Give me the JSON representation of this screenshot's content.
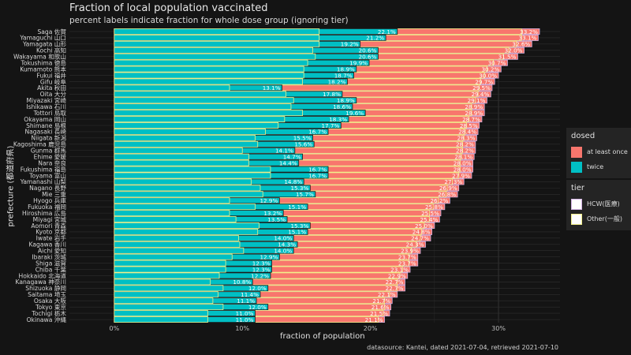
{
  "chart_data": {
    "type": "bar",
    "orientation": "horizontal",
    "title": "Fraction of local population vaccinated",
    "subtitle": "percent labels indicate fraction for whole dose group (ignoring tier)",
    "xlabel": "fraction of population",
    "ylabel": "prefecture (都道府県)",
    "caption": "datasource: Kantei, dated 2021-07-04, retrieved 2021-07-10",
    "xlim": [
      -0.035,
      0.348
    ],
    "xticks": [
      "0%",
      "10%",
      "20%",
      "30%"
    ],
    "xtick_values": [
      0,
      0.1,
      0.2,
      0.3
    ],
    "grid": true,
    "colors": {
      "at_least_once": "#F8766D",
      "twice": "#00BFC4",
      "hcw_outline": "#D4B4E4",
      "other_outline": "#F2F08A"
    },
    "legend_position": "right",
    "legend": {
      "dosed": {
        "title": "dosed",
        "items": [
          "at least once",
          "twice"
        ]
      },
      "tier": {
        "title": "tier",
        "items": [
          "HCW(医療)",
          "Other(一般)"
        ]
      }
    },
    "categories": [
      "Saga 佐賀",
      "Yamaguchi 山口",
      "Yamagata 山形",
      "Kochi 高知",
      "Wakayama 和歌山",
      "Tokushima 徳島",
      "Kumamoto 熊本",
      "Fukui 福井",
      "Gifu 岐阜",
      "Akita 秋田",
      "Oita 大分",
      "Miyazaki 宮崎",
      "Ishikawa 石川",
      "Tottori 鳥取",
      "Okayama 岡山",
      "Shimane 島根",
      "Nagasaki 長崎",
      "Niigata 新潟",
      "Kagoshima 鹿児島",
      "Gunma 群馬",
      "Ehime 愛媛",
      "Nara 奈良",
      "Fukushima 福島",
      "Toyama 富山",
      "Yamanashi 山梨",
      "Nagano 長野",
      "Mie 三重",
      "Hyogo 兵庫",
      "Fukuoka 福岡",
      "Hiroshima 広島",
      "Miyagi 宮城",
      "Aomori 青森",
      "Kyoto 京都",
      "Iwate 岩手",
      "Kagawa 香川",
      "Aichi 愛知",
      "Ibaraki 茨城",
      "Shiga 滋賀",
      "Chiba 千葉",
      "Hokkaido 北海道",
      "Kanagawa 神奈川",
      "Shizuoka 静岡",
      "Saitama 埼玉",
      "Osaka 大阪",
      "Tokyo 東京",
      "Tochigi 栃木",
      "Okinawa 沖縄"
    ],
    "series": [
      {
        "name": "at least once",
        "labels": [
          "33.2%",
          "33.1%",
          "32.6%",
          "32.0%",
          "31.5%",
          "30.7%",
          "30.2%",
          "30.0%",
          "29.7%",
          "29.5%",
          "29.4%",
          "29.1%",
          "28.9%",
          "28.9%",
          "28.7%",
          "28.5%",
          "28.4%",
          "28.3%",
          "28.2%",
          "28.2%",
          "28.1%",
          "28.0%",
          "28.0%",
          "27.9%",
          "27.3%",
          "26.9%",
          "26.8%",
          "26.2%",
          "25.8%",
          "25.5%",
          "25.4%",
          "25.0%",
          "24.8%",
          "24.7%",
          "24.3%",
          "23.9%",
          "23.7%",
          "23.7%",
          "23.1%",
          "22.9%",
          "22.7%",
          "22.7%",
          "22.1%",
          "21.7%",
          "21.6%",
          "21.5%",
          "21.1%"
        ],
        "values": [
          0.332,
          0.331,
          0.326,
          0.32,
          0.315,
          0.307,
          0.302,
          0.3,
          0.297,
          0.295,
          0.294,
          0.291,
          0.289,
          0.289,
          0.287,
          0.285,
          0.284,
          0.283,
          0.282,
          0.282,
          0.281,
          0.28,
          0.28,
          0.279,
          0.273,
          0.269,
          0.268,
          0.262,
          0.258,
          0.255,
          0.254,
          0.25,
          0.248,
          0.247,
          0.243,
          0.239,
          0.237,
          0.237,
          0.231,
          0.229,
          0.227,
          0.227,
          0.221,
          0.217,
          0.216,
          0.215,
          0.211
        ]
      },
      {
        "name": "twice",
        "labels": [
          "22.1%",
          "21.2%",
          "19.2%",
          "20.6%",
          "20.6%",
          "19.9%",
          "18.9%",
          "18.7%",
          "18.2%",
          "13.1%",
          "17.8%",
          "18.9%",
          "18.6%",
          "19.6%",
          "18.3%",
          "17.7%",
          "16.7%",
          "15.5%",
          "15.6%",
          "14.1%",
          "14.7%",
          "14.4%",
          "16.7%",
          "16.7%",
          "14.8%",
          "15.3%",
          "15.7%",
          "12.9%",
          "15.1%",
          "13.2%",
          "13.5%",
          "15.3%",
          "15.1%",
          "14.0%",
          "14.3%",
          "14.0%",
          "12.9%",
          "12.3%",
          "12.3%",
          "12.2%",
          "10.8%",
          "12.0%",
          "11.4%",
          "11.1%",
          "12.0%",
          "11.0%",
          "11.0%"
        ],
        "values": [
          0.221,
          0.212,
          0.192,
          0.206,
          0.206,
          0.199,
          0.189,
          0.187,
          0.182,
          0.131,
          0.178,
          0.189,
          0.186,
          0.196,
          0.183,
          0.177,
          0.167,
          0.155,
          0.156,
          0.141,
          0.147,
          0.144,
          0.167,
          0.167,
          0.148,
          0.153,
          0.157,
          0.129,
          0.151,
          0.132,
          0.135,
          0.153,
          0.151,
          0.14,
          0.143,
          0.14,
          0.129,
          0.123,
          0.123,
          0.122,
          0.108,
          0.12,
          0.114,
          0.111,
          0.12,
          0.11,
          0.11
        ]
      }
    ],
    "other_tier_at_least_once": [
      0.318,
      0.318,
      0.314,
      0.308,
      0.304,
      0.296,
      0.291,
      0.289,
      0.286,
      0.285,
      0.284,
      0.282,
      0.279,
      0.279,
      0.277,
      0.275,
      0.274,
      0.273,
      0.272,
      0.272,
      0.271,
      0.27,
      0.27,
      0.269,
      0.264,
      0.26,
      0.259,
      0.253,
      0.249,
      0.246,
      0.246,
      0.242,
      0.24,
      0.239,
      0.236,
      0.232,
      0.23,
      0.23,
      0.225,
      0.223,
      0.221,
      0.221,
      0.215,
      0.211,
      0.211,
      0.21,
      0.206
    ],
    "other_tier_twice": [
      0.16,
      0.16,
      0.16,
      0.155,
      0.157,
      0.151,
      0.148,
      0.148,
      0.147,
      0.09,
      0.134,
      0.14,
      0.138,
      0.147,
      0.133,
      0.128,
      0.118,
      0.11,
      0.112,
      0.1,
      0.105,
      0.105,
      0.122,
      0.122,
      0.107,
      0.114,
      0.116,
      0.09,
      0.11,
      0.09,
      0.095,
      0.113,
      0.112,
      0.097,
      0.098,
      0.101,
      0.092,
      0.087,
      0.087,
      0.082,
      0.075,
      0.085,
      0.081,
      0.077,
      0.085,
      0.073,
      0.073
    ]
  }
}
